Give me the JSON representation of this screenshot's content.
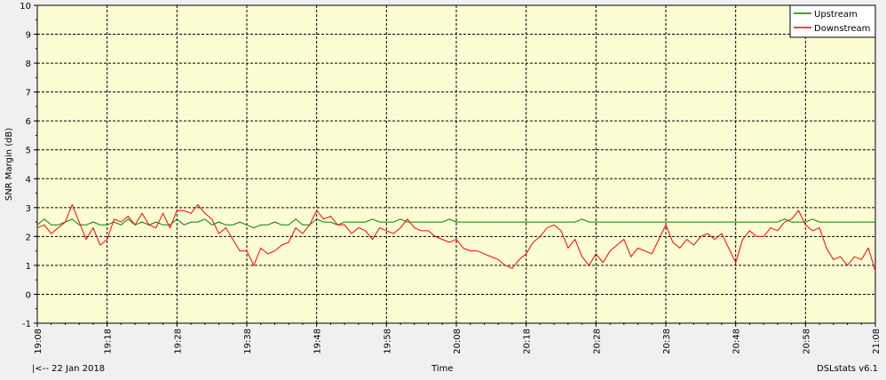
{
  "chart_data": {
    "type": "line",
    "ylabel": "SNR Margin (dB)",
    "xlabel": "Time",
    "ylim": [
      -1,
      10
    ],
    "yticks": [
      "-1",
      "0",
      "1",
      "2",
      "3",
      "4",
      "5",
      "6",
      "7",
      "8",
      "9",
      "10"
    ],
    "xticks": [
      "19:08",
      "19:18",
      "19:28",
      "19:38",
      "19:48",
      "19:58",
      "20:08",
      "20:18",
      "20:28",
      "20:38",
      "20:48",
      "20:58",
      "21:08"
    ],
    "xlim_minutes": [
      0,
      120
    ],
    "grid": true,
    "legend_position": "top-right",
    "series": [
      {
        "name": "Upstream",
        "color": "#008000",
        "x": [
          0,
          1,
          2,
          3,
          4,
          5,
          6,
          7,
          8,
          9,
          10,
          11,
          12,
          13,
          14,
          15,
          16,
          17,
          18,
          19,
          20,
          21,
          22,
          23,
          24,
          25,
          26,
          27,
          28,
          29,
          30,
          31,
          32,
          33,
          34,
          35,
          36,
          37,
          38,
          39,
          40,
          41,
          42,
          43,
          44,
          45,
          46,
          47,
          48,
          49,
          50,
          51,
          52,
          53,
          54,
          55,
          56,
          57,
          58,
          59,
          60,
          61,
          62,
          63,
          64,
          65,
          66,
          67,
          68,
          69,
          70,
          71,
          72,
          73,
          74,
          75,
          76,
          77,
          78,
          79,
          80,
          81,
          82,
          83,
          84,
          85,
          86,
          87,
          88,
          89,
          90,
          91,
          92,
          93,
          94,
          95,
          96,
          97,
          98,
          99,
          100,
          101,
          102,
          103,
          104,
          105,
          106,
          107,
          108,
          109,
          110,
          111,
          112,
          113,
          114,
          115,
          116,
          117,
          118,
          119,
          120
        ],
        "values": [
          2.4,
          2.6,
          2.4,
          2.4,
          2.5,
          2.6,
          2.4,
          2.4,
          2.5,
          2.4,
          2.4,
          2.5,
          2.4,
          2.6,
          2.4,
          2.5,
          2.4,
          2.5,
          2.4,
          2.4,
          2.6,
          2.4,
          2.5,
          2.5,
          2.6,
          2.4,
          2.5,
          2.4,
          2.4,
          2.5,
          2.4,
          2.3,
          2.4,
          2.4,
          2.5,
          2.4,
          2.4,
          2.6,
          2.4,
          2.4,
          2.6,
          2.5,
          2.5,
          2.4,
          2.5,
          2.5,
          2.5,
          2.5,
          2.6,
          2.5,
          2.5,
          2.5,
          2.6,
          2.5,
          2.5,
          2.5,
          2.5,
          2.5,
          2.5,
          2.6,
          2.5,
          2.5,
          2.5,
          2.5,
          2.5,
          2.5,
          2.5,
          2.5,
          2.5,
          2.5,
          2.5,
          2.5,
          2.5,
          2.5,
          2.5,
          2.5,
          2.5,
          2.5,
          2.6,
          2.5,
          2.5,
          2.5,
          2.5,
          2.5,
          2.5,
          2.5,
          2.5,
          2.5,
          2.5,
          2.5,
          2.5,
          2.5,
          2.5,
          2.5,
          2.5,
          2.5,
          2.5,
          2.5,
          2.5,
          2.5,
          2.5,
          2.5,
          2.5,
          2.5,
          2.5,
          2.5,
          2.5,
          2.6,
          2.5,
          2.5,
          2.5,
          2.6,
          2.5,
          2.5,
          2.5,
          2.5,
          2.5,
          2.5,
          2.5,
          2.5,
          2.5
        ]
      },
      {
        "name": "Downstream",
        "color": "#ff0000",
        "x": [
          0,
          1,
          2,
          3,
          4,
          5,
          6,
          7,
          8,
          9,
          10,
          11,
          12,
          13,
          14,
          15,
          16,
          17,
          18,
          19,
          20,
          21,
          22,
          23,
          24,
          25,
          26,
          27,
          28,
          29,
          30,
          31,
          32,
          33,
          34,
          35,
          36,
          37,
          38,
          39,
          40,
          41,
          42,
          43,
          44,
          45,
          46,
          47,
          48,
          49,
          50,
          51,
          52,
          53,
          54,
          55,
          56,
          57,
          58,
          59,
          60,
          61,
          62,
          63,
          64,
          65,
          66,
          67,
          68,
          69,
          70,
          71,
          72,
          73,
          74,
          75,
          76,
          77,
          78,
          79,
          80,
          81,
          82,
          83,
          84,
          85,
          86,
          87,
          88,
          89,
          90,
          91,
          92,
          93,
          94,
          95,
          96,
          97,
          98,
          99,
          100,
          101,
          102,
          103,
          104,
          105,
          106,
          107,
          108,
          109,
          110,
          111,
          112,
          113,
          114,
          115,
          116,
          117,
          118,
          119,
          120
        ],
        "values": [
          2.3,
          2.4,
          2.1,
          2.3,
          2.5,
          3.1,
          2.5,
          1.9,
          2.3,
          1.7,
          1.9,
          2.6,
          2.5,
          2.7,
          2.4,
          2.8,
          2.4,
          2.3,
          2.8,
          2.3,
          2.9,
          2.9,
          2.8,
          3.1,
          2.8,
          2.6,
          2.1,
          2.3,
          1.9,
          1.5,
          1.5,
          1.0,
          1.6,
          1.4,
          1.5,
          1.7,
          1.8,
          2.3,
          2.1,
          2.4,
          2.9,
          2.6,
          2.7,
          2.4,
          2.4,
          2.1,
          2.3,
          2.2,
          1.9,
          2.3,
          2.2,
          2.1,
          2.3,
          2.6,
          2.3,
          2.2,
          2.2,
          2.0,
          1.9,
          1.8,
          1.9,
          1.6,
          1.5,
          1.5,
          1.4,
          1.3,
          1.2,
          1.0,
          0.9,
          1.2,
          1.4,
          1.8,
          2.0,
          2.3,
          2.4,
          2.2,
          1.6,
          1.9,
          1.3,
          1.0,
          1.4,
          1.1,
          1.5,
          1.7,
          1.9,
          1.3,
          1.6,
          1.5,
          1.4,
          1.9,
          2.4,
          1.8,
          1.6,
          1.9,
          1.7,
          2.0,
          2.1,
          1.9,
          2.1,
          1.6,
          1.1,
          1.9,
          2.2,
          2.0,
          2.0,
          2.3,
          2.2,
          2.5,
          2.6,
          2.9,
          2.4,
          2.2,
          2.3,
          1.6,
          1.2,
          1.3,
          1.0,
          1.3,
          1.2,
          1.6,
          0.8
        ]
      }
    ]
  },
  "footer": {
    "left": "|<-- 22 Jan 2018",
    "center": "Time",
    "right": "DSLstats v6.1"
  },
  "colors": {
    "plot_background": "#fdfdd4",
    "window_background": "#f0f0f0"
  }
}
